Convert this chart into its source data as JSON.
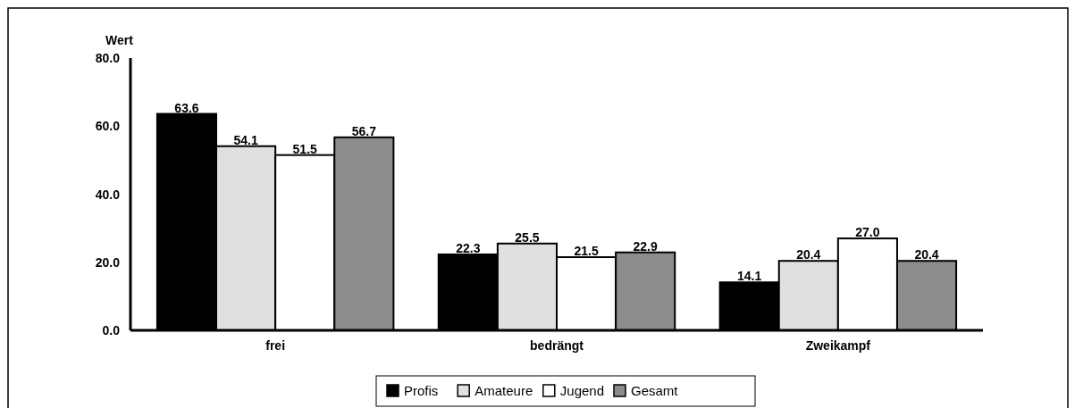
{
  "chart_data": {
    "type": "bar",
    "ylabel": "Wert",
    "categories": [
      "frei",
      "bedrängt",
      "Zweikampf"
    ],
    "series": [
      {
        "name": "Profis",
        "color": "#000000",
        "values": [
          63.6,
          22.3,
          14.1
        ],
        "value_labels": [
          "63.6",
          "22.3",
          "14.1"
        ]
      },
      {
        "name": "Amateure",
        "color": "#e0e0e0",
        "values": [
          54.1,
          25.5,
          20.4
        ],
        "value_labels": [
          "54.1",
          "25.5",
          "20.4"
        ]
      },
      {
        "name": "Jugend",
        "color": "#ffffff",
        "values": [
          51.5,
          21.5,
          27.0
        ],
        "value_labels": [
          "51.5",
          "21.5",
          "27.0"
        ]
      },
      {
        "name": "Gesamt",
        "color": "#8c8c8c",
        "values": [
          56.7,
          22.9,
          20.4
        ],
        "value_labels": [
          "56.7",
          "22.9",
          "20.4"
        ]
      }
    ],
    "ylim": [
      0,
      80
    ],
    "yticks": [
      {
        "value": 0,
        "label": "0.0"
      },
      {
        "value": 20,
        "label": "20.0"
      },
      {
        "value": 40,
        "label": "40.0"
      },
      {
        "value": 60,
        "label": "60.0"
      },
      {
        "value": 80,
        "label": "80.0"
      }
    ],
    "legend": "bottom"
  }
}
